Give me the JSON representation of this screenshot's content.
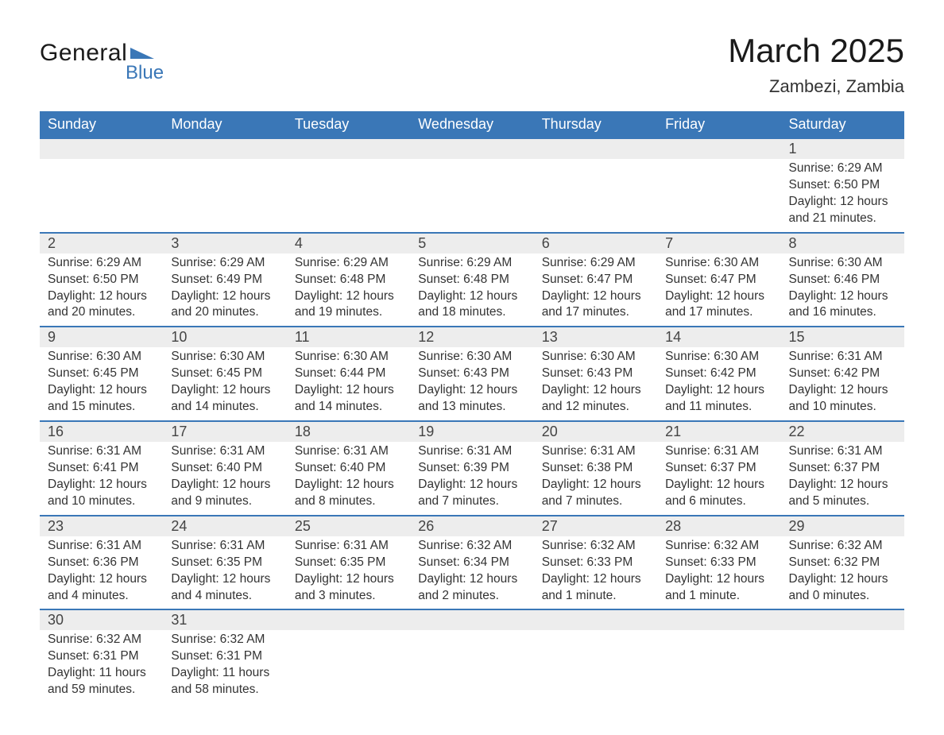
{
  "brand": {
    "name_part1": "General",
    "name_part2": "Blue",
    "logo_color": "#3a77b7"
  },
  "title": "March 2025",
  "location": "Zambezi, Zambia",
  "colors": {
    "header_bg": "#3a77b7",
    "header_text": "#ffffff",
    "daynum_bg": "#ededed",
    "row_border": "#3a77b7",
    "body_text": "#333333",
    "page_bg": "#ffffff"
  },
  "day_headers": [
    "Sunday",
    "Monday",
    "Tuesday",
    "Wednesday",
    "Thursday",
    "Friday",
    "Saturday"
  ],
  "labels": {
    "sunrise": "Sunrise",
    "sunset": "Sunset",
    "daylight": "Daylight"
  },
  "weeks": [
    [
      null,
      null,
      null,
      null,
      null,
      null,
      {
        "n": "1",
        "sunrise": "6:29 AM",
        "sunset": "6:50 PM",
        "daylight": "12 hours and 21 minutes."
      }
    ],
    [
      {
        "n": "2",
        "sunrise": "6:29 AM",
        "sunset": "6:50 PM",
        "daylight": "12 hours and 20 minutes."
      },
      {
        "n": "3",
        "sunrise": "6:29 AM",
        "sunset": "6:49 PM",
        "daylight": "12 hours and 20 minutes."
      },
      {
        "n": "4",
        "sunrise": "6:29 AM",
        "sunset": "6:48 PM",
        "daylight": "12 hours and 19 minutes."
      },
      {
        "n": "5",
        "sunrise": "6:29 AM",
        "sunset": "6:48 PM",
        "daylight": "12 hours and 18 minutes."
      },
      {
        "n": "6",
        "sunrise": "6:29 AM",
        "sunset": "6:47 PM",
        "daylight": "12 hours and 17 minutes."
      },
      {
        "n": "7",
        "sunrise": "6:30 AM",
        "sunset": "6:47 PM",
        "daylight": "12 hours and 17 minutes."
      },
      {
        "n": "8",
        "sunrise": "6:30 AM",
        "sunset": "6:46 PM",
        "daylight": "12 hours and 16 minutes."
      }
    ],
    [
      {
        "n": "9",
        "sunrise": "6:30 AM",
        "sunset": "6:45 PM",
        "daylight": "12 hours and 15 minutes."
      },
      {
        "n": "10",
        "sunrise": "6:30 AM",
        "sunset": "6:45 PM",
        "daylight": "12 hours and 14 minutes."
      },
      {
        "n": "11",
        "sunrise": "6:30 AM",
        "sunset": "6:44 PM",
        "daylight": "12 hours and 14 minutes."
      },
      {
        "n": "12",
        "sunrise": "6:30 AM",
        "sunset": "6:43 PM",
        "daylight": "12 hours and 13 minutes."
      },
      {
        "n": "13",
        "sunrise": "6:30 AM",
        "sunset": "6:43 PM",
        "daylight": "12 hours and 12 minutes."
      },
      {
        "n": "14",
        "sunrise": "6:30 AM",
        "sunset": "6:42 PM",
        "daylight": "12 hours and 11 minutes."
      },
      {
        "n": "15",
        "sunrise": "6:31 AM",
        "sunset": "6:42 PM",
        "daylight": "12 hours and 10 minutes."
      }
    ],
    [
      {
        "n": "16",
        "sunrise": "6:31 AM",
        "sunset": "6:41 PM",
        "daylight": "12 hours and 10 minutes."
      },
      {
        "n": "17",
        "sunrise": "6:31 AM",
        "sunset": "6:40 PM",
        "daylight": "12 hours and 9 minutes."
      },
      {
        "n": "18",
        "sunrise": "6:31 AM",
        "sunset": "6:40 PM",
        "daylight": "12 hours and 8 minutes."
      },
      {
        "n": "19",
        "sunrise": "6:31 AM",
        "sunset": "6:39 PM",
        "daylight": "12 hours and 7 minutes."
      },
      {
        "n": "20",
        "sunrise": "6:31 AM",
        "sunset": "6:38 PM",
        "daylight": "12 hours and 7 minutes."
      },
      {
        "n": "21",
        "sunrise": "6:31 AM",
        "sunset": "6:37 PM",
        "daylight": "12 hours and 6 minutes."
      },
      {
        "n": "22",
        "sunrise": "6:31 AM",
        "sunset": "6:37 PM",
        "daylight": "12 hours and 5 minutes."
      }
    ],
    [
      {
        "n": "23",
        "sunrise": "6:31 AM",
        "sunset": "6:36 PM",
        "daylight": "12 hours and 4 minutes."
      },
      {
        "n": "24",
        "sunrise": "6:31 AM",
        "sunset": "6:35 PM",
        "daylight": "12 hours and 4 minutes."
      },
      {
        "n": "25",
        "sunrise": "6:31 AM",
        "sunset": "6:35 PM",
        "daylight": "12 hours and 3 minutes."
      },
      {
        "n": "26",
        "sunrise": "6:32 AM",
        "sunset": "6:34 PM",
        "daylight": "12 hours and 2 minutes."
      },
      {
        "n": "27",
        "sunrise": "6:32 AM",
        "sunset": "6:33 PM",
        "daylight": "12 hours and 1 minute."
      },
      {
        "n": "28",
        "sunrise": "6:32 AM",
        "sunset": "6:33 PM",
        "daylight": "12 hours and 1 minute."
      },
      {
        "n": "29",
        "sunrise": "6:32 AM",
        "sunset": "6:32 PM",
        "daylight": "12 hours and 0 minutes."
      }
    ],
    [
      {
        "n": "30",
        "sunrise": "6:32 AM",
        "sunset": "6:31 PM",
        "daylight": "11 hours and 59 minutes."
      },
      {
        "n": "31",
        "sunrise": "6:32 AM",
        "sunset": "6:31 PM",
        "daylight": "11 hours and 58 minutes."
      },
      null,
      null,
      null,
      null,
      null
    ]
  ]
}
